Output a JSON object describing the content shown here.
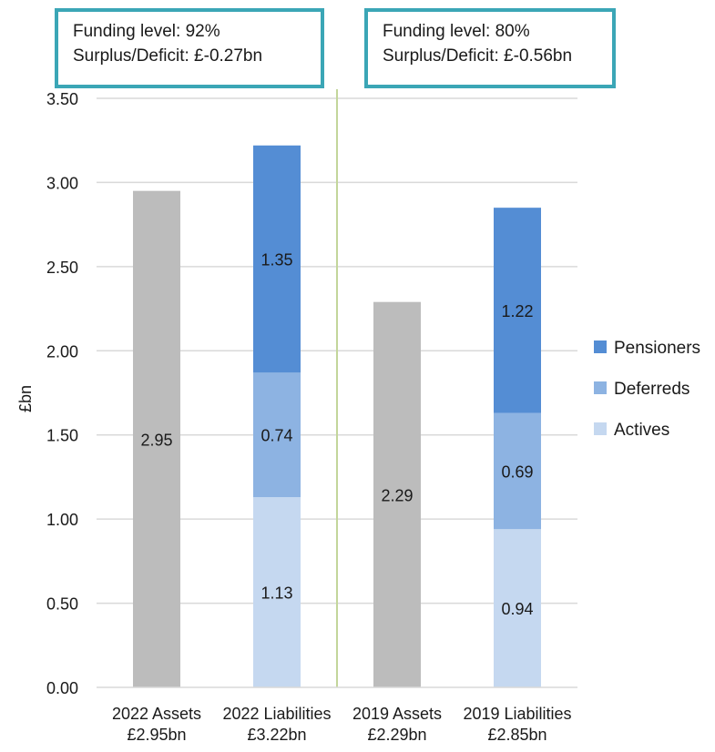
{
  "chart_data": {
    "type": "bar",
    "stacked": true,
    "ylabel": "£bn",
    "ylim": [
      0,
      3.5
    ],
    "yticks": [
      "0.00",
      "0.50",
      "1.00",
      "1.50",
      "2.00",
      "2.50",
      "3.00",
      "3.50"
    ],
    "grid": true,
    "legend_position": "right",
    "categories": [
      [
        "2022 Assets",
        "£2.95bn"
      ],
      [
        "2022 Liabilities",
        "£3.22bn"
      ],
      [
        "2019 Assets",
        "£2.29bn"
      ],
      [
        "2019 Liabilities",
        "£2.85bn"
      ]
    ],
    "series": [
      {
        "name": "Assets",
        "color": "#bcbcbc",
        "values": [
          2.95,
          0,
          2.29,
          0
        ],
        "labels": [
          "2.95",
          "",
          "2.29",
          ""
        ]
      },
      {
        "name": "Actives",
        "color": "#c5d8f0",
        "values": [
          0,
          1.13,
          0,
          0.94
        ],
        "labels": [
          "",
          "1.13",
          "",
          "0.94"
        ]
      },
      {
        "name": "Deferreds",
        "color": "#8db3e2",
        "values": [
          0,
          0.74,
          0,
          0.69
        ],
        "labels": [
          "",
          "0.74",
          "",
          "0.69"
        ]
      },
      {
        "name": "Pensioners",
        "color": "#548dd4",
        "values": [
          0,
          1.35,
          0,
          1.22
        ],
        "labels": [
          "",
          "1.35",
          "",
          "1.22"
        ]
      }
    ],
    "legend": [
      {
        "name": "Pensioners",
        "color": "#548dd4"
      },
      {
        "name": "Deferreds",
        "color": "#8db3e2"
      },
      {
        "name": "Actives",
        "color": "#c5d8f0"
      }
    ],
    "divider_color": "#c3d69b",
    "annotations": [
      {
        "line1": "Funding level: 92%",
        "line2": "Surplus/Deficit: £-0.27bn"
      },
      {
        "line1": "Funding level: 80%",
        "line2": "Surplus/Deficit: £-0.56bn"
      }
    ]
  }
}
